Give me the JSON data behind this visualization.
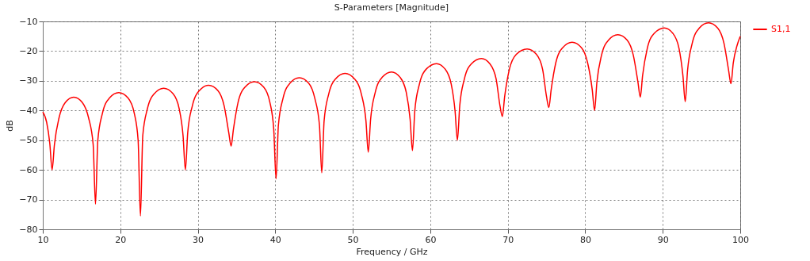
{
  "chart_data": {
    "type": "line",
    "title": "S-Parameters [Magnitude]",
    "xlabel": "Frequency / GHz",
    "ylabel": "dB",
    "xlim": [
      10,
      100
    ],
    "xticks": [
      10,
      20,
      30,
      40,
      50,
      60,
      70,
      80,
      90,
      100
    ],
    "ylim": [
      -80,
      -10
    ],
    "yticks": [
      -80,
      -70,
      -60,
      -50,
      -40,
      -30,
      -20,
      -10
    ],
    "grid": true,
    "legend": "top right",
    "marker": "none",
    "line_style": "solid",
    "series": [
      {
        "name": "S1,1",
        "color": "#ff0000",
        "x": [
          10,
          10.5,
          10.9,
          11.2,
          11.5,
          12.1,
          12.9,
          14,
          15.1,
          15.9,
          16.5,
          16.8,
          17.1,
          17.7,
          18.6,
          19.8,
          21,
          21.8,
          22.3,
          22.6,
          22.9,
          23.5,
          24.4,
          25.6,
          26.8,
          27.6,
          28.1,
          28.4,
          28.7,
          29.3,
          30.2,
          31.4,
          32.6,
          33.4,
          34,
          34.3,
          34.6,
          35.2,
          36.1,
          37.3,
          38.5,
          39.3,
          39.8,
          40.1,
          40.4,
          41,
          41.9,
          43.1,
          44.3,
          45.1,
          45.7,
          46,
          46.3,
          46.9,
          47.8,
          49,
          50.2,
          51.1,
          51.7,
          52,
          52.3,
          52.9,
          53.8,
          55,
          56.1,
          56.9,
          57.4,
          57.7,
          58,
          58.6,
          59.5,
          60.8,
          61.9,
          62.7,
          63.2,
          63.5,
          63.8,
          64.4,
          65.3,
          66.6,
          67.7,
          68.5,
          69,
          69.3,
          69.6,
          70.2,
          71.1,
          72.5,
          73.7,
          74.5,
          75,
          75.3,
          75.6,
          76.2,
          77.1,
          78.3,
          79.5,
          80.3,
          80.9,
          81.2,
          81.5,
          82.1,
          83,
          84.2,
          85.4,
          86.2,
          86.8,
          87.1,
          87.4,
          88,
          88.9,
          90.2,
          91.3,
          92.1,
          92.6,
          92.9,
          93.2,
          93.8,
          94.7,
          95.9,
          97.1,
          97.9,
          98.5,
          98.8,
          99.1,
          99.6,
          100
        ],
        "values": [
          -40.5,
          -44,
          -51,
          -60,
          -51.5,
          -42.4,
          -37.3,
          -35.5,
          -37.3,
          -42.4,
          -51.5,
          -71.5,
          -50,
          -40.9,
          -35.8,
          -34,
          -35.8,
          -40.9,
          -50,
          -75.5,
          -48.5,
          -39.4,
          -34.3,
          -32.5,
          -34.3,
          -39.4,
          -48.5,
          -60,
          -47.5,
          -38.4,
          -33.3,
          -31.5,
          -33.3,
          -38.4,
          -47.5,
          -52,
          -46.3,
          -37.2,
          -32.1,
          -30.3,
          -32.1,
          -37.2,
          -46.3,
          -63,
          -45,
          -35.9,
          -30.8,
          -29,
          -30.8,
          -35.9,
          -45,
          -61,
          -43.5,
          -34.4,
          -29.3,
          -27.5,
          -29.3,
          -34.4,
          -43.5,
          -54,
          -43,
          -33.9,
          -28.8,
          -27,
          -28.8,
          -33.9,
          -43,
          -53.5,
          -40.2,
          -31.1,
          -26,
          -24.2,
          -26,
          -31.1,
          -40.2,
          -50,
          -38.5,
          -29.4,
          -24.3,
          -22.5,
          -24.3,
          -29.4,
          -38.5,
          -42,
          -35.3,
          -26.2,
          -21.1,
          -19.3,
          -21.1,
          -26.2,
          -35.3,
          -39,
          -33,
          -23.9,
          -18.8,
          -17,
          -18.8,
          -23.9,
          -33,
          -40,
          -30.5,
          -21.4,
          -16.3,
          -14.5,
          -16.3,
          -21.4,
          -30.5,
          -35.5,
          -28.2,
          -19.1,
          -14,
          -12.2,
          -14,
          -19.1,
          -28.2,
          -37,
          -26.5,
          -17.4,
          -12.3,
          -10.5,
          -12.3,
          -17.4,
          -26.5,
          -31,
          -24,
          -18,
          -15
        ]
      }
    ]
  }
}
